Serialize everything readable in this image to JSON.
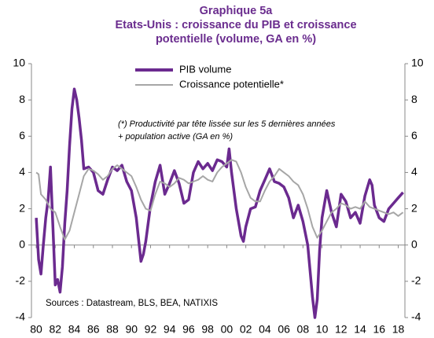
{
  "chart_data": {
    "type": "line",
    "title": [
      "Graphique 5a",
      "Etats-Unis : croissance du PIB et croissance",
      "potentielle (volume, GA en %)"
    ],
    "annotations": [
      "(*) Productivité par tête lissée sur les 5 dernières années",
      "+ population active (GA en %)",
      "Sources : Datastream, BLS, BEA, NATIXIS"
    ],
    "series": [
      {
        "name": "PIB volume",
        "color": "#6b2a8f",
        "x": [
          1980,
          1980.25,
          1980.5,
          1980.75,
          1981,
          1981.25,
          1981.5,
          1981.75,
          1982,
          1982.25,
          1982.5,
          1982.75,
          1983,
          1983.25,
          1983.5,
          1983.75,
          1984,
          1984.25,
          1984.5,
          1984.75,
          1985,
          1985.5,
          1986,
          1986.5,
          1987,
          1987.5,
          1988,
          1988.5,
          1989,
          1989.5,
          1990,
          1990.5,
          1991,
          1991.25,
          1991.5,
          1992,
          1992.5,
          1993,
          1993.5,
          1994,
          1994.5,
          1995,
          1995.5,
          1996,
          1996.5,
          1997,
          1997.5,
          1998,
          1998.5,
          1999,
          1999.5,
          2000,
          2000.25,
          2000.5,
          2001,
          2001.5,
          2001.75,
          2002,
          2002.5,
          2003,
          2003.5,
          2004,
          2004.5,
          2005,
          2005.5,
          2006,
          2006.5,
          2007,
          2007.5,
          2008,
          2008.5,
          2009,
          2009.25,
          2009.5,
          2009.75,
          2010,
          2010.5,
          2011,
          2011.5,
          2012,
          2012.5,
          2013,
          2013.5,
          2014,
          2014.5,
          2015,
          2015.25,
          2015.5,
          2016,
          2016.5,
          2017,
          2017.5,
          2018,
          2018.5
        ],
        "values": [
          1.5,
          -0.8,
          -1.6,
          0.0,
          1.5,
          2.5,
          4.3,
          1.0,
          -2.2,
          -1.9,
          -2.6,
          -1.2,
          1.2,
          3.0,
          5.5,
          7.5,
          8.6,
          8.0,
          7.0,
          5.8,
          4.2,
          4.3,
          4.0,
          3.0,
          2.8,
          3.6,
          4.3,
          4.1,
          4.4,
          3.5,
          3.0,
          1.5,
          -0.9,
          -0.5,
          0.2,
          2.2,
          3.5,
          4.4,
          2.8,
          3.4,
          4.1,
          3.4,
          2.3,
          2.5,
          4.0,
          4.6,
          4.2,
          4.5,
          4.1,
          4.7,
          4.6,
          4.3,
          5.3,
          4.0,
          2.0,
          0.5,
          0.2,
          1.0,
          2.0,
          2.1,
          3.0,
          3.6,
          4.2,
          3.5,
          3.4,
          3.2,
          2.6,
          1.5,
          2.2,
          1.3,
          0.0,
          -2.9,
          -4.0,
          -3.0,
          -0.3,
          1.5,
          3.0,
          1.8,
          1.0,
          2.8,
          2.4,
          1.5,
          1.8,
          1.2,
          2.7,
          3.6,
          3.3,
          2.2,
          1.5,
          1.3,
          2.0,
          2.3,
          2.6,
          2.9
        ]
      },
      {
        "name": "Croissance potentielle*",
        "color": "#a6a6a6",
        "x": [
          1980,
          1980.25,
          1980.5,
          1981,
          1981.5,
          1982,
          1982.5,
          1983,
          1983.5,
          1984,
          1984.5,
          1985,
          1985.5,
          1986,
          1986.5,
          1987,
          1987.5,
          1988,
          1988.5,
          1989,
          1989.5,
          1990,
          1990.5,
          1991,
          1991.5,
          1992,
          1992.5,
          1993,
          1993.5,
          1994,
          1994.5,
          1995,
          1995.5,
          1996,
          1996.5,
          1997,
          1997.5,
          1998,
          1998.5,
          1999,
          1999.5,
          2000,
          2000.5,
          2001,
          2001.5,
          2002,
          2002.5,
          2003,
          2003.5,
          2004,
          2004.5,
          2005,
          2005.5,
          2006,
          2006.5,
          2007,
          2007.5,
          2008,
          2008.5,
          2009,
          2009.5,
          2010,
          2010.5,
          2011,
          2011.5,
          2012,
          2012.5,
          2013,
          2013.5,
          2014,
          2014.5,
          2015,
          2015.5,
          2016,
          2016.5,
          2017,
          2017.5,
          2018,
          2018.5
        ],
        "values": [
          4.0,
          3.9,
          2.8,
          2.5,
          2.0,
          1.8,
          1.0,
          0.3,
          0.8,
          1.8,
          2.8,
          3.8,
          4.2,
          4.1,
          3.9,
          3.6,
          3.8,
          4.2,
          4.4,
          4.2,
          4.0,
          3.8,
          3.2,
          2.5,
          2.0,
          1.9,
          2.8,
          3.5,
          3.4,
          3.2,
          3.4,
          3.7,
          3.6,
          3.4,
          3.5,
          3.6,
          3.8,
          3.6,
          3.5,
          4.0,
          4.3,
          4.5,
          4.7,
          4.6,
          4.0,
          3.2,
          2.6,
          2.4,
          2.4,
          3.0,
          3.5,
          3.8,
          4.2,
          4.0,
          3.8,
          3.5,
          3.3,
          2.8,
          2.0,
          1.0,
          0.4,
          0.8,
          1.3,
          1.8,
          2.0,
          2.3,
          2.2,
          2.0,
          2.1,
          2.0,
          2.4,
          2.1,
          2.0,
          1.9,
          1.8,
          1.7,
          1.8,
          1.6,
          1.8
        ]
      }
    ],
    "xlim": [
      1979.5,
      2018.7
    ],
    "xticks": [
      {
        "value": 1980,
        "label": "80"
      },
      {
        "value": 1982,
        "label": "82"
      },
      {
        "value": 1984,
        "label": "84"
      },
      {
        "value": 1986,
        "label": "86"
      },
      {
        "value": 1988,
        "label": "88"
      },
      {
        "value": 1990,
        "label": "90"
      },
      {
        "value": 1992,
        "label": "92"
      },
      {
        "value": 1994,
        "label": "94"
      },
      {
        "value": 1996,
        "label": "96"
      },
      {
        "value": 1998,
        "label": "98"
      },
      {
        "value": 2000,
        "label": "00"
      },
      {
        "value": 2002,
        "label": "02"
      },
      {
        "value": 2004,
        "label": "04"
      },
      {
        "value": 2006,
        "label": "06"
      },
      {
        "value": 2008,
        "label": "08"
      },
      {
        "value": 2010,
        "label": "10"
      },
      {
        "value": 2012,
        "label": "12"
      },
      {
        "value": 2014,
        "label": "14"
      },
      {
        "value": 2016,
        "label": "16"
      },
      {
        "value": 2018,
        "label": "18"
      }
    ],
    "ylim": [
      -4,
      10
    ],
    "yticks": [
      -4,
      -2,
      0,
      2,
      4,
      6,
      8,
      10
    ],
    "y2lim": [
      -4,
      10
    ],
    "y2ticks": [
      -4,
      -2,
      0,
      2,
      4,
      6,
      8,
      10
    ]
  }
}
